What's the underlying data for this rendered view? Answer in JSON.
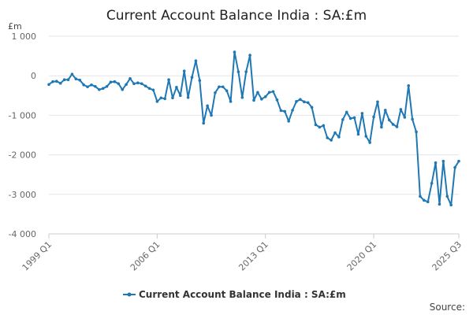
{
  "chart_data": {
    "type": "line",
    "title": "Current Account Balance India : SA:£m",
    "ylabel": "£m",
    "xlabel": "",
    "ylim": [
      -4000,
      1000
    ],
    "yticks": [
      1000,
      0,
      -1000,
      -2000,
      -3000,
      -4000
    ],
    "ytick_labels": [
      "1 000",
      "0",
      "-1 000",
      "-2 000",
      "-3 000",
      "-4 000"
    ],
    "xtick_labels": [
      "1999 Q1",
      "2006 Q1",
      "2013 Q1",
      "2020 Q1",
      "2025 Q3"
    ],
    "xtick_indices": [
      0,
      28,
      56,
      84,
      106
    ],
    "legend_position": "bottom",
    "grid": true,
    "series": [
      {
        "name": "Current Account Balance India : SA:£m",
        "color": "#1f78b4",
        "values": [
          -220,
          -150,
          -140,
          -190,
          -100,
          -100,
          40,
          -80,
          -110,
          -230,
          -280,
          -230,
          -270,
          -350,
          -320,
          -270,
          -160,
          -150,
          -200,
          -350,
          -220,
          -70,
          -200,
          -180,
          -200,
          -260,
          -320,
          -360,
          -650,
          -560,
          -580,
          -100,
          -560,
          -290,
          -500,
          120,
          -550,
          -40,
          380,
          -120,
          -1200,
          -760,
          -1000,
          -430,
          -280,
          -280,
          -380,
          -650,
          600,
          100,
          -550,
          100,
          520,
          -620,
          -420,
          -590,
          -530,
          -420,
          -400,
          -610,
          -880,
          -900,
          -1150,
          -870,
          -650,
          -600,
          -660,
          -680,
          -800,
          -1240,
          -1300,
          -1260,
          -1570,
          -1630,
          -1440,
          -1550,
          -1110,
          -920,
          -1080,
          -1060,
          -1480,
          -950,
          -1530,
          -1690,
          -1040,
          -660,
          -1300,
          -870,
          -1120,
          -1230,
          -1290,
          -850,
          -1050,
          -250,
          -1100,
          -1420,
          -3050,
          -3150,
          -3190,
          -2720,
          -2200,
          -3250,
          -2160,
          -3050,
          -3270,
          -2320,
          -2160
        ]
      }
    ]
  },
  "footer": {
    "source_label": "Source:"
  }
}
